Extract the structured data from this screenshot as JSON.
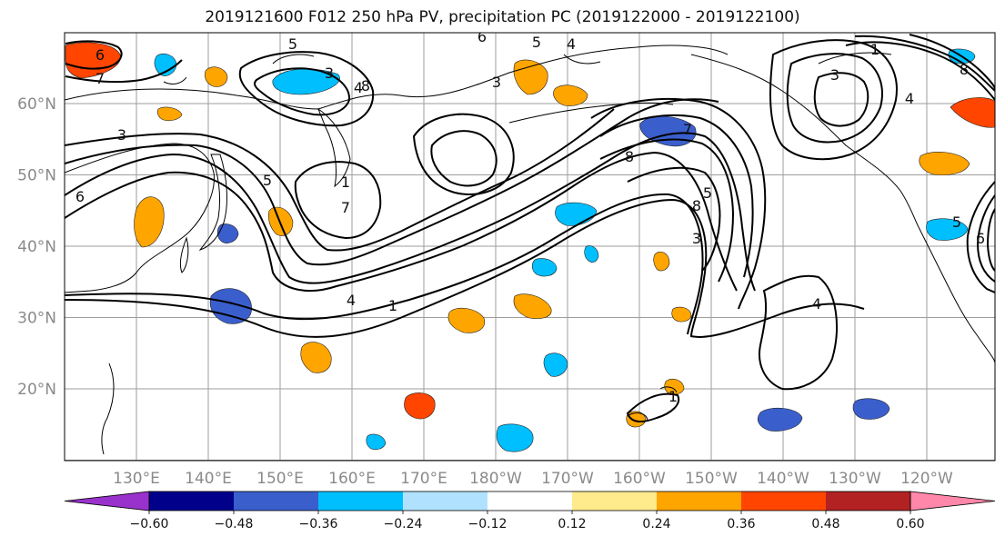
{
  "title": "2019121600 F012 250 hPa PV, precipitation PC (2019122000 - 2019122100)",
  "map": {
    "lon_ticks": [
      "130°E",
      "140°E",
      "150°E",
      "160°E",
      "170°E",
      "180°W",
      "170°W",
      "160°W",
      "150°W",
      "140°W",
      "130°W",
      "120°W"
    ],
    "lat_ticks": [
      "60°N",
      "50°N",
      "40°N",
      "30°N",
      "20°N"
    ],
    "grid": true,
    "pv_contour_labels": [
      "6",
      "7",
      "5",
      "3",
      "4",
      "8",
      "6",
      "5",
      "4",
      "3",
      "1",
      "4",
      "8",
      "7",
      "5",
      "3",
      "1",
      "4",
      "8",
      "1",
      "7",
      "5",
      "3",
      "6",
      "1",
      "3",
      "4",
      "5",
      "6",
      "8"
    ],
    "pc_anomaly_patches": [
      {
        "value": 0.48,
        "color": "#ff4500"
      },
      {
        "value": -0.36,
        "color": "#3a5fcd"
      },
      {
        "value": 0.36,
        "color": "#ffa500"
      },
      {
        "value": -0.24,
        "color": "#00bfff"
      },
      {
        "value": 0.24,
        "color": "#ffa500"
      },
      {
        "value": -0.48,
        "color": "#3a5fcd"
      },
      {
        "value": 0.36,
        "color": "#ff4500"
      },
      {
        "value": 0.24,
        "color": "#ffa500"
      }
    ]
  },
  "colorbar": {
    "levels": [
      "−0.60",
      "−0.48",
      "−0.36",
      "−0.24",
      "−0.12",
      "0.12",
      "0.24",
      "0.36",
      "0.48",
      "0.60"
    ],
    "colors": [
      "#9932cc",
      "#00008b",
      "#3a5fcd",
      "#00bfff",
      "#b0e2ff",
      "#ffffff",
      "#ffeb8c",
      "#ffa500",
      "#ff4500",
      "#b22222",
      "#ff88aa"
    ]
  }
}
